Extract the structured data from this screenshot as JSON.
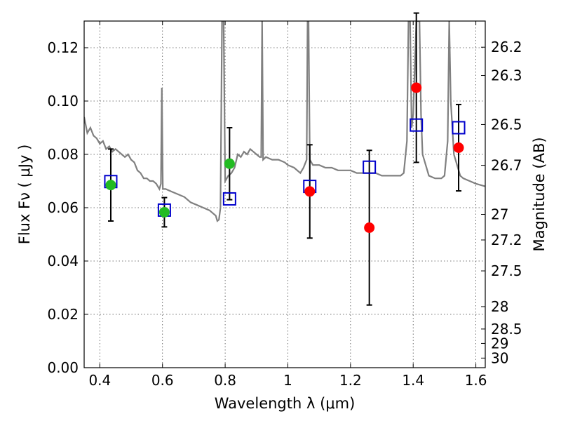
{
  "chart_data": {
    "type": "scatter",
    "xlabel": "Wavelength  λ (μm)",
    "ylabel": "Flux  Fν  ( μJy )",
    "y2label": "Magnitude (AB)",
    "xlim": [
      0.35,
      1.63
    ],
    "ylim": [
      0.0,
      0.13
    ],
    "grid": true,
    "x_ticks": [
      0.4,
      0.6,
      0.8,
      1.0,
      1.2,
      1.4,
      1.6
    ],
    "x_tick_labels": [
      "0.4",
      "0.6",
      "0.8",
      "1",
      "1.2",
      "1.4",
      "1.6"
    ],
    "y_ticks": [
      0.0,
      0.02,
      0.04,
      0.06,
      0.08,
      0.1,
      0.12
    ],
    "y_tick_labels": [
      "0.00",
      "0.02",
      "0.04",
      "0.06",
      "0.08",
      "0.10",
      "0.12"
    ],
    "y2_tick_labels": [
      "26.2",
      "26.3",
      "26.5",
      "26.7",
      "27",
      "27.2",
      "27.5",
      "28",
      "28.5",
      "29",
      "30"
    ],
    "y2_tick_flux": [
      0.1202,
      0.1096,
      0.0912,
      0.0759,
      0.0575,
      0.0479,
      0.0363,
      0.0229,
      0.0145,
      0.0091,
      0.0036
    ],
    "colors": {
      "model": "#808080",
      "green": "#22bb22",
      "red": "#ff0000",
      "box": "#0000cc",
      "errorbar": "#000000"
    },
    "series": [
      {
        "marker": "filled-circle",
        "color": "green",
        "points": [
          {
            "x": 0.435,
            "y": 0.0685,
            "err": 0.0135
          },
          {
            "x": 0.606,
            "y": 0.0583,
            "err": 0.0055
          },
          {
            "x": 0.814,
            "y": 0.0765,
            "err": 0.0135
          }
        ]
      },
      {
        "marker": "filled-circle",
        "color": "red",
        "points": [
          {
            "x": 1.07,
            "y": 0.0661,
            "err": 0.0175
          },
          {
            "x": 1.26,
            "y": 0.0525,
            "err": 0.029
          },
          {
            "x": 1.41,
            "y": 0.105,
            "err": 0.028
          },
          {
            "x": 1.545,
            "y": 0.0825,
            "err": 0.0162
          }
        ]
      },
      {
        "marker": "open-square",
        "color": "box",
        "points": [
          {
            "x": 0.435,
            "y": 0.0698
          },
          {
            "x": 0.606,
            "y": 0.0591
          },
          {
            "x": 0.814,
            "y": 0.0633
          },
          {
            "x": 1.07,
            "y": 0.068
          },
          {
            "x": 1.26,
            "y": 0.0752
          },
          {
            "x": 1.41,
            "y": 0.091
          },
          {
            "x": 1.545,
            "y": 0.09
          }
        ]
      },
      {
        "marker": "line",
        "color": "model",
        "points": [
          [
            0.35,
            0.094
          ],
          [
            0.36,
            0.088
          ],
          [
            0.37,
            0.09
          ],
          [
            0.38,
            0.087
          ],
          [
            0.39,
            0.086
          ],
          [
            0.4,
            0.084
          ],
          [
            0.41,
            0.085
          ],
          [
            0.42,
            0.082
          ],
          [
            0.43,
            0.083
          ],
          [
            0.44,
            0.081
          ],
          [
            0.45,
            0.082
          ],
          [
            0.46,
            0.081
          ],
          [
            0.47,
            0.08
          ],
          [
            0.48,
            0.079
          ],
          [
            0.49,
            0.08
          ],
          [
            0.5,
            0.078
          ],
          [
            0.51,
            0.077
          ],
          [
            0.52,
            0.074
          ],
          [
            0.53,
            0.073
          ],
          [
            0.54,
            0.071
          ],
          [
            0.55,
            0.071
          ],
          [
            0.56,
            0.07
          ],
          [
            0.57,
            0.07
          ],
          [
            0.58,
            0.069
          ],
          [
            0.59,
            0.067
          ],
          [
            0.595,
            0.069
          ],
          [
            0.598,
            0.105
          ],
          [
            0.601,
            0.067
          ],
          [
            0.61,
            0.067
          ],
          [
            0.63,
            0.066
          ],
          [
            0.65,
            0.065
          ],
          [
            0.67,
            0.064
          ],
          [
            0.69,
            0.062
          ],
          [
            0.71,
            0.061
          ],
          [
            0.73,
            0.06
          ],
          [
            0.75,
            0.059
          ],
          [
            0.76,
            0.058
          ],
          [
            0.77,
            0.057
          ],
          [
            0.775,
            0.055
          ],
          [
            0.78,
            0.0555
          ],
          [
            0.785,
            0.06
          ],
          [
            0.79,
            0.13
          ],
          [
            0.795,
            0.13
          ],
          [
            0.8,
            0.07
          ],
          [
            0.81,
            0.072
          ],
          [
            0.82,
            0.073
          ],
          [
            0.83,
            0.075
          ],
          [
            0.84,
            0.08
          ],
          [
            0.85,
            0.079
          ],
          [
            0.86,
            0.081
          ],
          [
            0.87,
            0.08
          ],
          [
            0.88,
            0.082
          ],
          [
            0.89,
            0.081
          ],
          [
            0.9,
            0.08
          ],
          [
            0.91,
            0.079
          ],
          [
            0.915,
            0.079
          ],
          [
            0.918,
            0.13
          ],
          [
            0.921,
            0.078
          ],
          [
            0.93,
            0.079
          ],
          [
            0.95,
            0.078
          ],
          [
            0.97,
            0.078
          ],
          [
            0.99,
            0.077
          ],
          [
            1.0,
            0.076
          ],
          [
            1.02,
            0.075
          ],
          [
            1.04,
            0.073
          ],
          [
            1.05,
            0.075
          ],
          [
            1.06,
            0.078
          ],
          [
            1.063,
            0.13
          ],
          [
            1.066,
            0.13
          ],
          [
            1.07,
            0.078
          ],
          [
            1.08,
            0.076
          ],
          [
            1.1,
            0.076
          ],
          [
            1.12,
            0.075
          ],
          [
            1.14,
            0.075
          ],
          [
            1.16,
            0.074
          ],
          [
            1.18,
            0.074
          ],
          [
            1.2,
            0.074
          ],
          [
            1.22,
            0.073
          ],
          [
            1.24,
            0.073
          ],
          [
            1.26,
            0.073
          ],
          [
            1.28,
            0.073
          ],
          [
            1.3,
            0.072
          ],
          [
            1.32,
            0.072
          ],
          [
            1.34,
            0.072
          ],
          [
            1.36,
            0.072
          ],
          [
            1.37,
            0.073
          ],
          [
            1.38,
            0.085
          ],
          [
            1.385,
            0.13
          ],
          [
            1.39,
            0.13
          ],
          [
            1.395,
            0.09
          ],
          [
            1.4,
            0.095
          ],
          [
            1.41,
            0.13
          ],
          [
            1.42,
            0.13
          ],
          [
            1.425,
            0.095
          ],
          [
            1.43,
            0.08
          ],
          [
            1.45,
            0.072
          ],
          [
            1.47,
            0.071
          ],
          [
            1.49,
            0.071
          ],
          [
            1.5,
            0.072
          ],
          [
            1.51,
            0.085
          ],
          [
            1.515,
            0.13
          ],
          [
            1.52,
            0.1
          ],
          [
            1.53,
            0.08
          ],
          [
            1.55,
            0.072
          ],
          [
            1.56,
            0.071
          ],
          [
            1.58,
            0.07
          ],
          [
            1.6,
            0.069
          ],
          [
            1.63,
            0.068
          ]
        ]
      }
    ]
  }
}
